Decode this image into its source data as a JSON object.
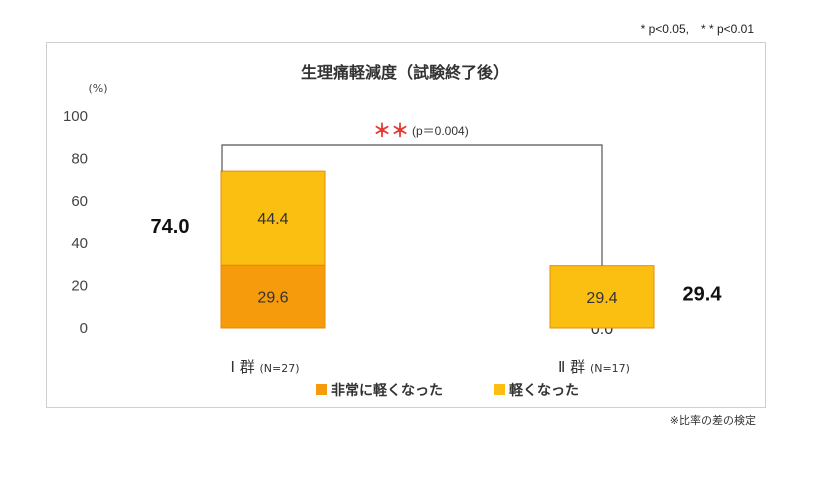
{
  "header": {
    "significance_note": "* p<0.05,　* * p<0.01"
  },
  "footnote": "※比率の差の検定",
  "chart_data": {
    "type": "bar",
    "stacked": true,
    "title": "生理痛軽減度（試験終了後）",
    "ylabel": "(%)",
    "ylim": [
      0,
      100
    ],
    "yticks": [
      0,
      20,
      40,
      60,
      80,
      100
    ],
    "categories": [
      {
        "label": "Ⅰ 群",
        "n": "(N=27)"
      },
      {
        "label": "Ⅱ 群",
        "n": "(N=17)"
      }
    ],
    "series": [
      {
        "name": "非常に軽くなった",
        "color": "#f59b0c",
        "values": [
          29.6,
          0.0
        ]
      },
      {
        "name": "軽くなった",
        "color": "#fbbf12",
        "values": [
          44.4,
          29.4
        ]
      }
    ],
    "totals": [
      74.0,
      29.4
    ],
    "annotation": {
      "stars": "＊＊",
      "text": "(p＝0.004)"
    },
    "grid": false,
    "legend": "bottom"
  }
}
